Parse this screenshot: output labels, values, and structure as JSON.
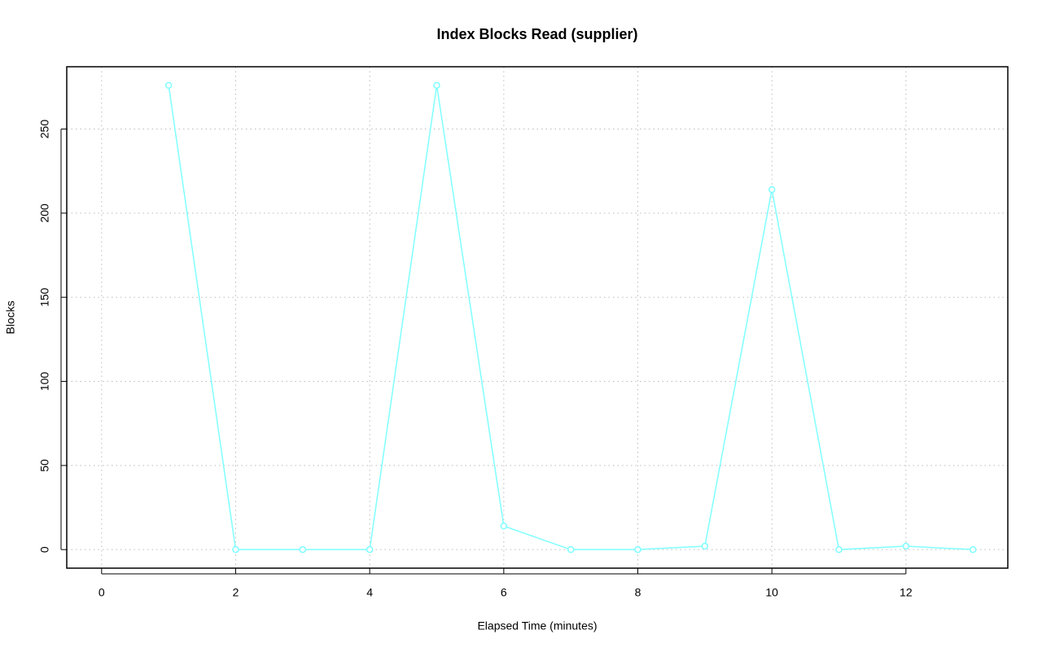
{
  "chart_data": {
    "type": "line",
    "title": "Index Blocks Read (supplier)",
    "xlabel": "Elapsed Time (minutes)",
    "ylabel": "Blocks",
    "x": [
      1,
      2,
      3,
      4,
      5,
      6,
      7,
      8,
      9,
      10,
      11,
      12,
      13
    ],
    "series": [
      {
        "color": "#80ffff",
        "values": [
          276,
          0,
          0,
          0,
          276,
          14,
          0,
          0,
          2,
          214,
          0,
          2,
          0
        ]
      }
    ],
    "xlim": [
      -0.52,
      13.52
    ],
    "xticks": [
      0,
      2,
      4,
      6,
      8,
      10,
      12
    ],
    "ylim": [
      -11.04,
      287.04
    ],
    "yticks": [
      0,
      50,
      100,
      150,
      200,
      250
    ],
    "grid": true
  }
}
